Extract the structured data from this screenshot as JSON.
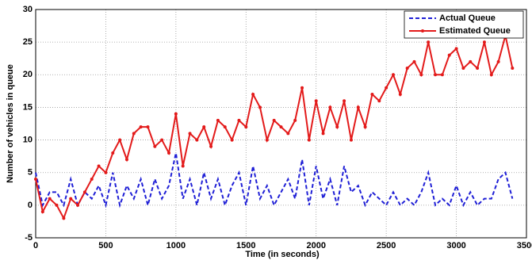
{
  "chart_data": {
    "type": "line",
    "xlabel": "Time (in seconds)",
    "ylabel": "Number of vehicles in queue",
    "x": [
      0,
      50,
      100,
      150,
      200,
      250,
      300,
      350,
      400,
      450,
      500,
      550,
      600,
      650,
      700,
      750,
      800,
      850,
      900,
      950,
      1000,
      1050,
      1100,
      1150,
      1200,
      1250,
      1300,
      1350,
      1400,
      1450,
      1500,
      1550,
      1600,
      1650,
      1700,
      1750,
      1800,
      1850,
      1900,
      1950,
      2000,
      2050,
      2100,
      2150,
      2200,
      2250,
      2300,
      2350,
      2400,
      2450,
      2500,
      2550,
      2600,
      2650,
      2700,
      2750,
      2800,
      2850,
      2900,
      2950,
      3000,
      3050,
      3100,
      3150,
      3200,
      3250,
      3300,
      3350,
      3400
    ],
    "series": [
      {
        "name": "Actual Queue",
        "color": "#1f1fd6",
        "dashed": true,
        "values": [
          5,
          0,
          2,
          2,
          0,
          4,
          0,
          2,
          1,
          3,
          0,
          5,
          0,
          3,
          1,
          4,
          0,
          4,
          1,
          3,
          8,
          1,
          4,
          0,
          5,
          1,
          4,
          0,
          3,
          5,
          0,
          6,
          1,
          3,
          0,
          2,
          4,
          1,
          7,
          0,
          6,
          1,
          4,
          0,
          6,
          2,
          3,
          0,
          2,
          1,
          0,
          2,
          0,
          1,
          0,
          2,
          5,
          0,
          1,
          0,
          3,
          0,
          2,
          0,
          1,
          1,
          4,
          5,
          1
        ]
      },
      {
        "name": "Estimated Queue",
        "color": "#e31a1a",
        "markers": true,
        "values": [
          4,
          -1,
          1,
          0,
          -2,
          1,
          0,
          2,
          4,
          6,
          5,
          8,
          10,
          7,
          11,
          12,
          12,
          9,
          10,
          8,
          14,
          6,
          11,
          10,
          12,
          9,
          13,
          12,
          10,
          13,
          12,
          17,
          15,
          10,
          13,
          12,
          11,
          13,
          18,
          10,
          16,
          11,
          15,
          12,
          16,
          10,
          15,
          12,
          17,
          16,
          18,
          20,
          17,
          21,
          22,
          20,
          25,
          20,
          20,
          23,
          24,
          21,
          22,
          21,
          25,
          20,
          22,
          26,
          21
        ]
      }
    ],
    "xlim": [
      0,
      3500
    ],
    "xticks": [
      0,
      500,
      1000,
      1500,
      2000,
      2500,
      3000,
      3500
    ],
    "ylim": [
      -5,
      30
    ],
    "yticks": [
      -5,
      0,
      5,
      10,
      15,
      20,
      25,
      30
    ],
    "grid": true,
    "legend": "top-right"
  }
}
